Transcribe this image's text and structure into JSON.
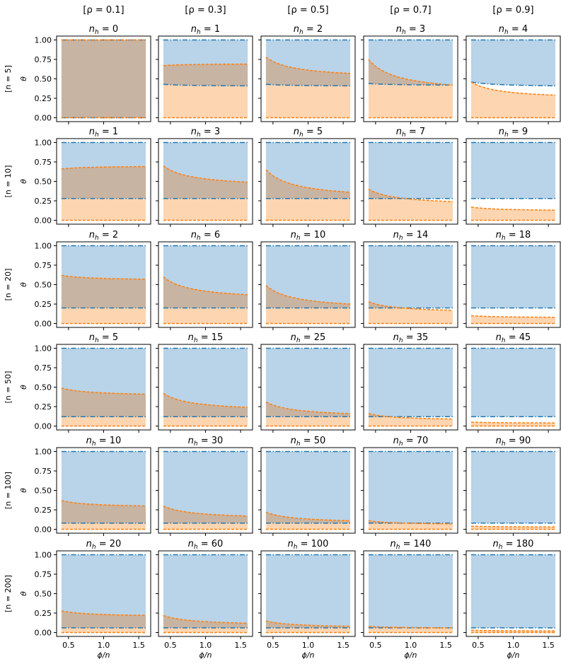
{
  "figure": {
    "column_headers": [
      "[ρ = 0.1]",
      "[ρ = 0.3]",
      "[ρ = 0.5]",
      "[ρ = 0.7]",
      "[ρ = 0.9]"
    ],
    "row_headers": [
      "[n = 5]",
      "[n = 10]",
      "[n = 20]",
      "[n = 50]",
      "[n = 100]",
      "[n = 200]"
    ],
    "ylabel": "θ",
    "xlabel": "ϕ/n",
    "colors": {
      "blue_fill": "#b9d3e8",
      "orange_fill": "#fdd5b1",
      "overlap_fill": "#c8b4a2",
      "blue_line": "#1f77b4",
      "orange_line": "#ff7f0e",
      "frame": "#000000"
    }
  },
  "chart_data": {
    "type": "area",
    "layout": "grid 6 rows x 5 columns",
    "xlim": [
      0.33,
      1.67
    ],
    "ylim": [
      -0.05,
      1.05
    ],
    "xticks": [
      0.5,
      1.0,
      1.5
    ],
    "xtick_labels": [
      "0.5",
      "1.0",
      "1.5"
    ],
    "yticks": [
      0,
      0.25,
      0.5,
      0.75,
      1.0
    ],
    "ytick_labels": [
      "0.00",
      "0.25",
      "0.50",
      "0.75",
      "1.00"
    ],
    "x_range": [
      0.4,
      1.6
    ],
    "blue_band_top": 1.0,
    "orange_band_bottom": 0.0,
    "panels": [
      [
        {
          "title": "n_h = 0",
          "blue_low": 0.0,
          "orange_start": 1.0,
          "orange_end": 1.0,
          "orange_low": 0.0
        },
        {
          "title": "n_h = 1",
          "blue_low_start": 0.43,
          "blue_low": 0.41,
          "orange_start": 0.67,
          "orange_end": 0.69,
          "orange_low": 0.0
        },
        {
          "title": "n_h = 2",
          "blue_low_start": 0.43,
          "blue_low": 0.41,
          "orange_start": 0.78,
          "orange_end": 0.57,
          "orange_low": 0.0
        },
        {
          "title": "n_h = 3",
          "blue_low_start": 0.44,
          "blue_low": 0.42,
          "orange_start": 0.75,
          "orange_end": 0.42,
          "orange_low": 0.0
        },
        {
          "title": "n_h = 4",
          "blue_low_start": 0.46,
          "blue_low": 0.41,
          "orange_start": 0.46,
          "orange_end": 0.29,
          "orange_low": 0.0
        }
      ],
      [
        {
          "title": "n_h = 1",
          "blue_low": 0.28,
          "orange_start": 0.66,
          "orange_end": 0.69,
          "orange_low": 0.0
        },
        {
          "title": "n_h = 3",
          "blue_low": 0.28,
          "orange_start": 0.7,
          "orange_end": 0.49,
          "orange_low": 0.0
        },
        {
          "title": "n_h = 5",
          "blue_low": 0.28,
          "orange_start": 0.65,
          "orange_end": 0.36,
          "orange_low": 0.0
        },
        {
          "title": "n_h = 7",
          "blue_low": 0.28,
          "orange_start": 0.4,
          "orange_end": 0.24,
          "orange_low": 0.0
        },
        {
          "title": "n_h = 9",
          "blue_low": 0.28,
          "orange_start": 0.17,
          "orange_end": 0.13,
          "orange_low": 0.0
        }
      ],
      [
        {
          "title": "n_h = 2",
          "blue_low": 0.2,
          "orange_start": 0.62,
          "orange_end": 0.57,
          "orange_low": 0.0
        },
        {
          "title": "n_h = 6",
          "blue_low": 0.2,
          "orange_start": 0.6,
          "orange_end": 0.37,
          "orange_low": 0.0
        },
        {
          "title": "n_h = 10",
          "blue_low": 0.2,
          "orange_start": 0.49,
          "orange_end": 0.25,
          "orange_low": 0.0
        },
        {
          "title": "n_h = 14",
          "blue_low": 0.2,
          "orange_start": 0.28,
          "orange_end": 0.17,
          "orange_low": 0.0
        },
        {
          "title": "n_h = 18",
          "blue_low": 0.2,
          "orange_start": 0.1,
          "orange_end": 0.08,
          "orange_low": 0.0
        }
      ],
      [
        {
          "title": "n_h = 5",
          "blue_low": 0.12,
          "orange_start": 0.49,
          "orange_end": 0.41,
          "orange_low": 0.0
        },
        {
          "title": "n_h = 15",
          "blue_low": 0.12,
          "orange_start": 0.42,
          "orange_end": 0.24,
          "orange_low": 0.0
        },
        {
          "title": "n_h = 25",
          "blue_low": 0.12,
          "orange_start": 0.31,
          "orange_end": 0.16,
          "orange_low": 0.0
        },
        {
          "title": "n_h = 35",
          "blue_low": 0.12,
          "orange_start": 0.16,
          "orange_end": 0.09,
          "orange_low": 0.0
        },
        {
          "title": "n_h = 45",
          "blue_low": 0.12,
          "orange_start": 0.05,
          "orange_end": 0.04,
          "orange_low": 0.0
        }
      ],
      [
        {
          "title": "n_h = 10",
          "blue_low": 0.08,
          "orange_start": 0.37,
          "orange_end": 0.3,
          "orange_low": 0.0
        },
        {
          "title": "n_h = 30",
          "blue_low": 0.08,
          "orange_start": 0.3,
          "orange_end": 0.17,
          "orange_low": 0.0
        },
        {
          "title": "n_h = 50",
          "blue_low": 0.08,
          "orange_start": 0.22,
          "orange_end": 0.11,
          "orange_low": 0.0
        },
        {
          "title": "n_h = 70",
          "blue_low": 0.08,
          "orange_start": 0.11,
          "orange_end": 0.07,
          "orange_low": 0.0
        },
        {
          "title": "n_h = 90",
          "blue_low": 0.08,
          "orange_start": 0.04,
          "orange_end": 0.03,
          "orange_low": 0.0
        }
      ],
      [
        {
          "title": "n_h = 20",
          "blue_low": 0.06,
          "orange_start": 0.28,
          "orange_end": 0.22,
          "orange_low": 0.0
        },
        {
          "title": "n_h = 60",
          "blue_low": 0.06,
          "orange_start": 0.22,
          "orange_end": 0.12,
          "orange_low": 0.0
        },
        {
          "title": "n_h = 100",
          "blue_low": 0.06,
          "orange_start": 0.15,
          "orange_end": 0.08,
          "orange_low": 0.0
        },
        {
          "title": "n_h = 140",
          "blue_low": 0.06,
          "orange_start": 0.08,
          "orange_end": 0.06,
          "orange_low": 0.0
        },
        {
          "title": "n_h = 180",
          "blue_low": 0.06,
          "orange_start": 0.03,
          "orange_end": 0.02,
          "orange_low": 0.0
        }
      ]
    ]
  }
}
